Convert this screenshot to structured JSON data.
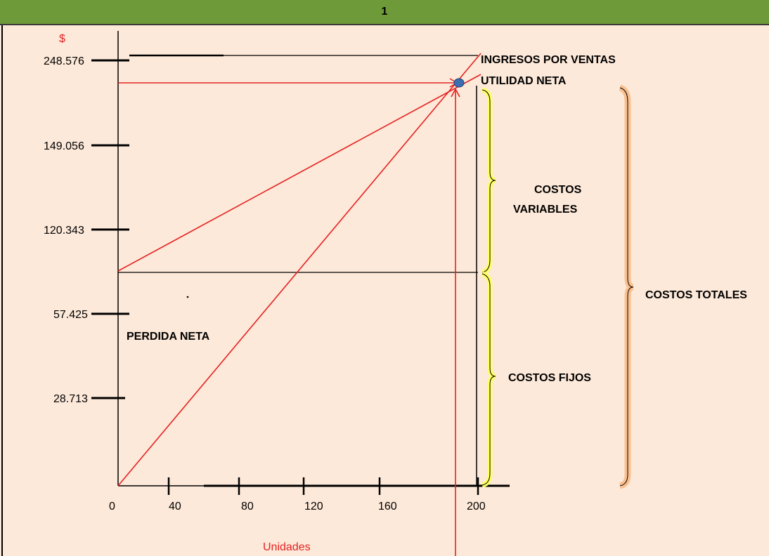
{
  "header": {
    "title": "1"
  },
  "y_axis": {
    "symbol": "$",
    "ticks": [
      "248.576",
      "149.056",
      "120.343",
      "57.425",
      "28.713"
    ]
  },
  "x_axis": {
    "title": "Unidades",
    "ticks": [
      "0",
      "40",
      "80",
      "120",
      "160",
      "200"
    ]
  },
  "labels": {
    "ingresos": "INGRESOS POR VENTAS",
    "utilidad": "UTILIDAD NETA",
    "costos_variables_1": "COSTOS",
    "costos_variables_2": "VARIABLES",
    "costos_totales": "COSTOS TOTALES",
    "costos_fijos": "COSTOS FIJOS",
    "perdida": "PERDIDA NETA"
  },
  "colors": {
    "header": "#6f9a3a",
    "background": "#fde9d9",
    "lines": "#e52222",
    "brace_variables_fijos": "#ffff66",
    "brace_totales": "#fac090",
    "point": "#3c6fb0"
  }
}
